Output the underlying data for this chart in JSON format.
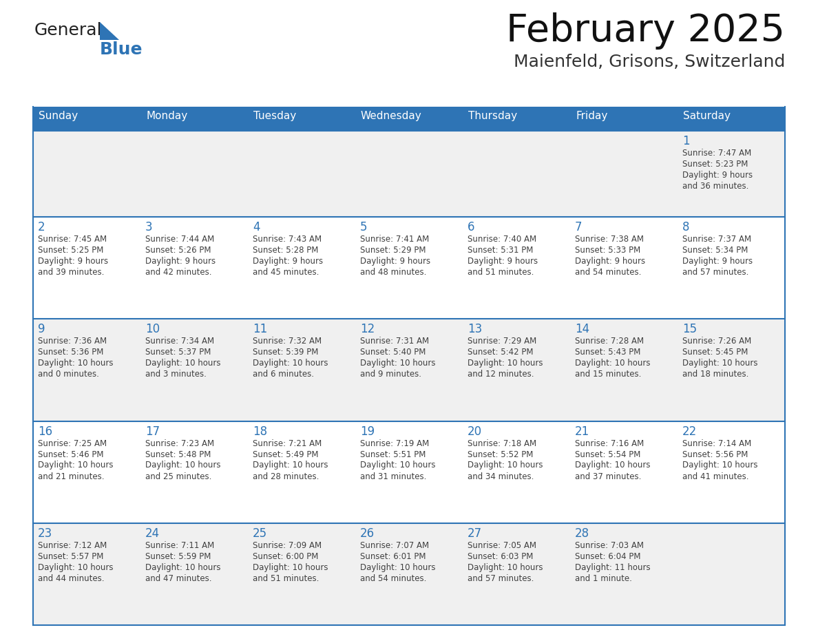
{
  "title": "February 2025",
  "subtitle": "Maienfeld, Grisons, Switzerland",
  "header_color": "#2E74B5",
  "header_text_color": "#FFFFFF",
  "cell_bg_row0": "#F0F0F0",
  "cell_bg_row1": "#FFFFFF",
  "day_names": [
    "Sunday",
    "Monday",
    "Tuesday",
    "Wednesday",
    "Thursday",
    "Friday",
    "Saturday"
  ],
  "day_number_color": "#2E74B5",
  "cell_text_color": "#404040",
  "grid_line_color": "#2E74B5",
  "logo_general_color": "#222222",
  "logo_blue_color": "#2E74B5",
  "logo_triangle_color": "#2E74B5",
  "title_color": "#111111",
  "subtitle_color": "#333333",
  "calendar": [
    [
      null,
      null,
      null,
      null,
      null,
      null,
      {
        "day": "1",
        "sunrise": "7:47 AM",
        "sunset": "5:23 PM",
        "daylight1": "9 hours",
        "daylight2": "and 36 minutes."
      }
    ],
    [
      {
        "day": "2",
        "sunrise": "7:45 AM",
        "sunset": "5:25 PM",
        "daylight1": "9 hours",
        "daylight2": "and 39 minutes."
      },
      {
        "day": "3",
        "sunrise": "7:44 AM",
        "sunset": "5:26 PM",
        "daylight1": "9 hours",
        "daylight2": "and 42 minutes."
      },
      {
        "day": "4",
        "sunrise": "7:43 AM",
        "sunset": "5:28 PM",
        "daylight1": "9 hours",
        "daylight2": "and 45 minutes."
      },
      {
        "day": "5",
        "sunrise": "7:41 AM",
        "sunset": "5:29 PM",
        "daylight1": "9 hours",
        "daylight2": "and 48 minutes."
      },
      {
        "day": "6",
        "sunrise": "7:40 AM",
        "sunset": "5:31 PM",
        "daylight1": "9 hours",
        "daylight2": "and 51 minutes."
      },
      {
        "day": "7",
        "sunrise": "7:38 AM",
        "sunset": "5:33 PM",
        "daylight1": "9 hours",
        "daylight2": "and 54 minutes."
      },
      {
        "day": "8",
        "sunrise": "7:37 AM",
        "sunset": "5:34 PM",
        "daylight1": "9 hours",
        "daylight2": "and 57 minutes."
      }
    ],
    [
      {
        "day": "9",
        "sunrise": "7:36 AM",
        "sunset": "5:36 PM",
        "daylight1": "10 hours",
        "daylight2": "and 0 minutes."
      },
      {
        "day": "10",
        "sunrise": "7:34 AM",
        "sunset": "5:37 PM",
        "daylight1": "10 hours",
        "daylight2": "and 3 minutes."
      },
      {
        "day": "11",
        "sunrise": "7:32 AM",
        "sunset": "5:39 PM",
        "daylight1": "10 hours",
        "daylight2": "and 6 minutes."
      },
      {
        "day": "12",
        "sunrise": "7:31 AM",
        "sunset": "5:40 PM",
        "daylight1": "10 hours",
        "daylight2": "and 9 minutes."
      },
      {
        "day": "13",
        "sunrise": "7:29 AM",
        "sunset": "5:42 PM",
        "daylight1": "10 hours",
        "daylight2": "and 12 minutes."
      },
      {
        "day": "14",
        "sunrise": "7:28 AM",
        "sunset": "5:43 PM",
        "daylight1": "10 hours",
        "daylight2": "and 15 minutes."
      },
      {
        "day": "15",
        "sunrise": "7:26 AM",
        "sunset": "5:45 PM",
        "daylight1": "10 hours",
        "daylight2": "and 18 minutes."
      }
    ],
    [
      {
        "day": "16",
        "sunrise": "7:25 AM",
        "sunset": "5:46 PM",
        "daylight1": "10 hours",
        "daylight2": "and 21 minutes."
      },
      {
        "day": "17",
        "sunrise": "7:23 AM",
        "sunset": "5:48 PM",
        "daylight1": "10 hours",
        "daylight2": "and 25 minutes."
      },
      {
        "day": "18",
        "sunrise": "7:21 AM",
        "sunset": "5:49 PM",
        "daylight1": "10 hours",
        "daylight2": "and 28 minutes."
      },
      {
        "day": "19",
        "sunrise": "7:19 AM",
        "sunset": "5:51 PM",
        "daylight1": "10 hours",
        "daylight2": "and 31 minutes."
      },
      {
        "day": "20",
        "sunrise": "7:18 AM",
        "sunset": "5:52 PM",
        "daylight1": "10 hours",
        "daylight2": "and 34 minutes."
      },
      {
        "day": "21",
        "sunrise": "7:16 AM",
        "sunset": "5:54 PM",
        "daylight1": "10 hours",
        "daylight2": "and 37 minutes."
      },
      {
        "day": "22",
        "sunrise": "7:14 AM",
        "sunset": "5:56 PM",
        "daylight1": "10 hours",
        "daylight2": "and 41 minutes."
      }
    ],
    [
      {
        "day": "23",
        "sunrise": "7:12 AM",
        "sunset": "5:57 PM",
        "daylight1": "10 hours",
        "daylight2": "and 44 minutes."
      },
      {
        "day": "24",
        "sunrise": "7:11 AM",
        "sunset": "5:59 PM",
        "daylight1": "10 hours",
        "daylight2": "and 47 minutes."
      },
      {
        "day": "25",
        "sunrise": "7:09 AM",
        "sunset": "6:00 PM",
        "daylight1": "10 hours",
        "daylight2": "and 51 minutes."
      },
      {
        "day": "26",
        "sunrise": "7:07 AM",
        "sunset": "6:01 PM",
        "daylight1": "10 hours",
        "daylight2": "and 54 minutes."
      },
      {
        "day": "27",
        "sunrise": "7:05 AM",
        "sunset": "6:03 PM",
        "daylight1": "10 hours",
        "daylight2": "and 57 minutes."
      },
      {
        "day": "28",
        "sunrise": "7:03 AM",
        "sunset": "6:04 PM",
        "daylight1": "11 hours",
        "daylight2": "and 1 minute."
      },
      null
    ]
  ]
}
